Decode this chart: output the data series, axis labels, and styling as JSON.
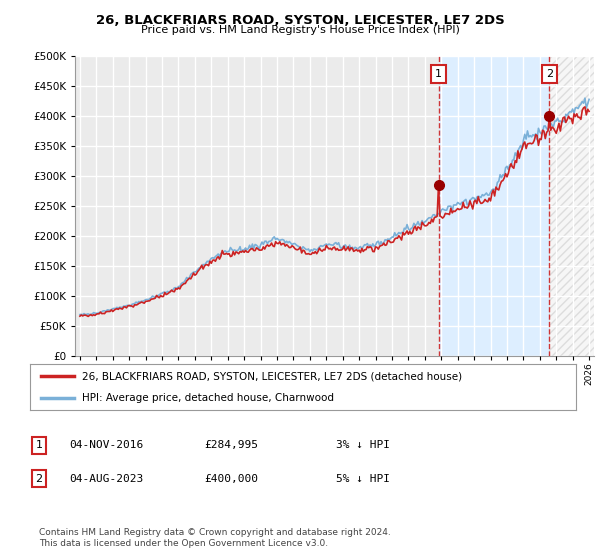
{
  "title": "26, BLACKFRIARS ROAD, SYSTON, LEICESTER, LE7 2DS",
  "subtitle": "Price paid vs. HM Land Registry's House Price Index (HPI)",
  "ylim": [
    0,
    500000
  ],
  "yticks": [
    0,
    50000,
    100000,
    150000,
    200000,
    250000,
    300000,
    350000,
    400000,
    450000,
    500000
  ],
  "background_color": "#ffffff",
  "plot_bg_color": "#ebebeb",
  "grid_color": "#ffffff",
  "hpi_color": "#7ab0d8",
  "price_color": "#cc2222",
  "shade_color": "#ddeeff",
  "marker1_x": 2016.836,
  "marker2_x": 2023.583,
  "marker1_value": 284995,
  "marker2_value": 400000,
  "annotation1": "1",
  "annotation2": "2",
  "legend1": "26, BLACKFRIARS ROAD, SYSTON, LEICESTER, LE7 2DS (detached house)",
  "legend2": "HPI: Average price, detached house, Charnwood",
  "table_rows": [
    {
      "num": "1",
      "date": "04-NOV-2016",
      "price": "£284,995",
      "pct": "3% ↓ HPI"
    },
    {
      "num": "2",
      "date": "04-AUG-2023",
      "price": "£400,000",
      "pct": "5% ↓ HPI"
    }
  ],
  "footer": "Contains HM Land Registry data © Crown copyright and database right 2024.\nThis data is licensed under the Open Government Licence v3.0.",
  "xstart_year": 1995,
  "xend_year": 2026
}
